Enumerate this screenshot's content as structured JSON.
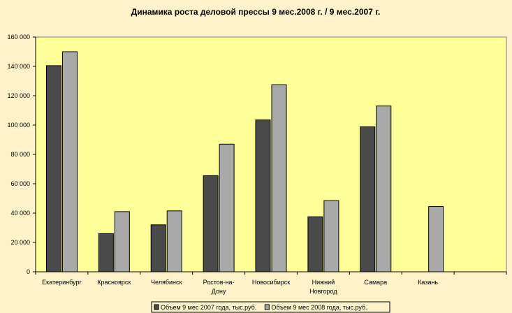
{
  "chart_data": {
    "type": "bar",
    "title": "Динамика роста деловой прессы 9 мес.2008 г. / 9 мес.2007 г.",
    "xlabel": "",
    "ylabel": "",
    "ylim": [
      0,
      160000
    ],
    "yticks": [
      "0",
      "20 000",
      "40 000",
      "60 000",
      "80 000",
      "100 000",
      "120 000",
      "140 000",
      "160 000"
    ],
    "categories": [
      [
        "Екатеринбург"
      ],
      [
        "Красноярск"
      ],
      [
        "Челябинск"
      ],
      [
        "Ростов-на-",
        "Дону"
      ],
      [
        "Новосибирск"
      ],
      [
        "Нижний",
        "Новгород"
      ],
      [
        "Самара"
      ],
      [
        "Казань"
      ]
    ],
    "series": [
      {
        "name": "Объем 9 мес 2007 года, тыс.руб.",
        "color": "#4a4a4a",
        "values": [
          140500,
          26000,
          32000,
          65500,
          103500,
          37500,
          98800,
          null
        ]
      },
      {
        "name": "Объем 9 мес 2008 года, тыс.руб.",
        "color": "#a9a9a9",
        "values": [
          150000,
          41000,
          41500,
          87000,
          127500,
          48500,
          113000,
          44500
        ]
      }
    ],
    "grid": false,
    "legend_position": "bottom",
    "plot_background": "#ffff99",
    "page_background": "#fdf2c9"
  }
}
